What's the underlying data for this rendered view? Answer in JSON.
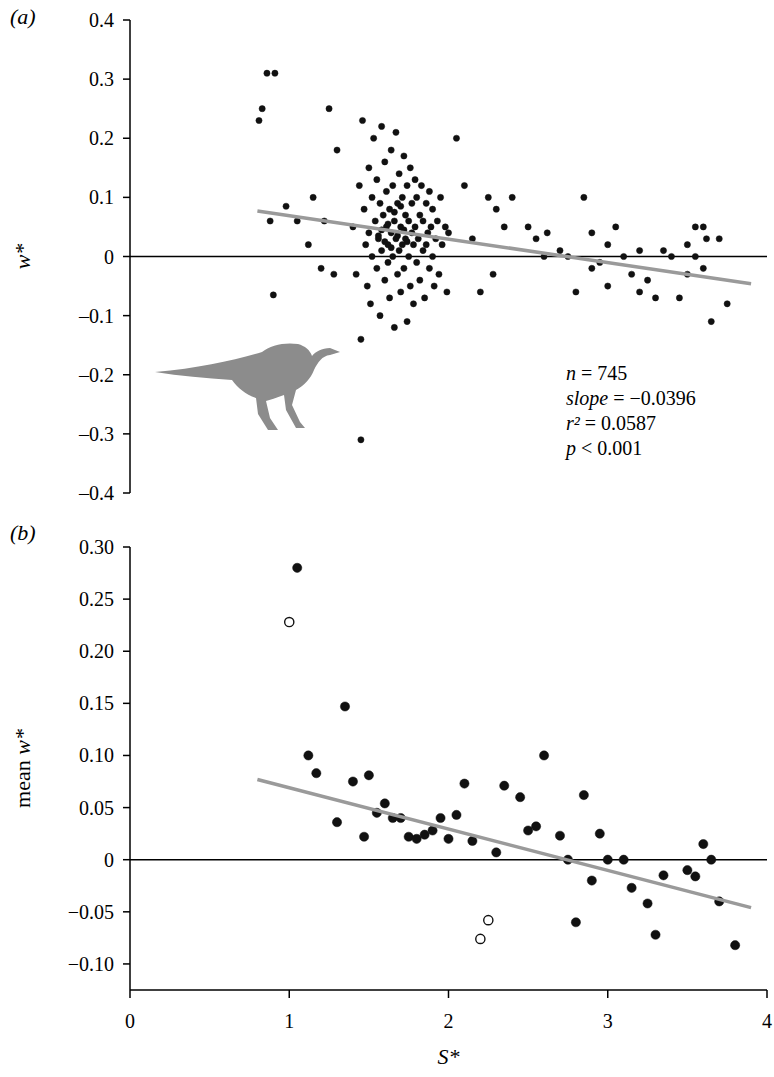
{
  "chart_data": [
    {
      "type": "scatter",
      "label": "(a)",
      "y_label": "w*",
      "xlim": [
        0,
        4
      ],
      "ylim": [
        -0.4,
        0.4
      ],
      "yticks": [
        0.4,
        0.3,
        0.2,
        0.1,
        0,
        {
          "value": -0.1,
          "label": "–0.1"
        },
        {
          "value": -0.2,
          "label": "–0.2"
        },
        {
          "value": -0.3,
          "label": "–0.3"
        },
        {
          "value": -0.4,
          "label": "–0.4"
        }
      ],
      "tick_labels": "y",
      "reference_line": 0,
      "annotations": [
        "n = 745",
        "slope = −0.0396",
        "r² = 0.0587",
        "p < 0.001"
      ],
      "series": [
        {
          "type": "scatter",
          "marker": "filled",
          "color": "#111111",
          "x": [
            0.81,
            0.83,
            0.86,
            0.91,
            0.88,
            0.9,
            0.98,
            1.05,
            1.12,
            1.15,
            1.2,
            1.25,
            1.22,
            1.3,
            1.28,
            1.45,
            1.4,
            1.42,
            1.44,
            1.45,
            1.46,
            1.47,
            1.48,
            1.49,
            1.5,
            1.5,
            1.51,
            1.52,
            1.52,
            1.53,
            1.54,
            1.55,
            1.55,
            1.56,
            1.57,
            1.57,
            1.58,
            1.58,
            1.59,
            1.6,
            1.6,
            1.61,
            1.61,
            1.62,
            1.62,
            1.63,
            1.63,
            1.64,
            1.64,
            1.65,
            1.65,
            1.66,
            1.66,
            1.67,
            1.67,
            1.68,
            1.68,
            1.69,
            1.69,
            1.7,
            1.7,
            1.71,
            1.71,
            1.72,
            1.72,
            1.73,
            1.73,
            1.74,
            1.74,
            1.75,
            1.75,
            1.76,
            1.76,
            1.77,
            1.77,
            1.78,
            1.78,
            1.79,
            1.79,
            1.8,
            1.8,
            1.81,
            1.82,
            1.82,
            1.83,
            1.84,
            1.84,
            1.85,
            1.86,
            1.86,
            1.87,
            1.88,
            1.88,
            1.89,
            1.9,
            1.9,
            1.91,
            1.92,
            1.93,
            1.94,
            1.95,
            1.96,
            1.98,
            1.99,
            2.0,
            1.56,
            1.58,
            1.6,
            1.62,
            1.64,
            1.66,
            1.68,
            1.7,
            1.72,
            1.74,
            2.05,
            2.1,
            2.15,
            2.2,
            2.25,
            2.3,
            2.28,
            2.35,
            2.4,
            2.5,
            2.55,
            2.6,
            2.62,
            2.7,
            2.8,
            2.85,
            2.9,
            2.9,
            3.0,
            3.0,
            3.05,
            3.1,
            3.15,
            3.2,
            3.25,
            3.3,
            3.35,
            3.45,
            3.5,
            3.5,
            3.55,
            3.6,
            3.6,
            3.65,
            3.7,
            3.75,
            3.55,
            3.62,
            3.4,
            3.2,
            2.95,
            2.75
          ],
          "values": [
            0.23,
            0.25,
            0.31,
            0.31,
            0.06,
            -0.065,
            0.085,
            0.06,
            0.02,
            0.1,
            -0.02,
            0.25,
            0.06,
            0.18,
            -0.03,
            -0.31,
            0.05,
            -0.03,
            0.12,
            -0.14,
            0.23,
            0.08,
            0.02,
            -0.05,
            0.15,
            0.04,
            -0.08,
            0.1,
            0.0,
            0.2,
            0.06,
            -0.02,
            0.13,
            0.03,
            0.09,
            -0.1,
            0.22,
            0.01,
            0.07,
            -0.04,
            0.16,
            0.05,
            0.11,
            -0.01,
            0.02,
            0.08,
            -0.07,
            0.18,
            0.04,
            0.0,
            0.12,
            -0.12,
            0.06,
            0.03,
            0.21,
            0.09,
            -0.03,
            0.14,
            0.01,
            0.05,
            -0.06,
            0.1,
            0.02,
            0.17,
            -0.02,
            0.07,
            0.03,
            -0.11,
            0.12,
            0.0,
            0.06,
            0.15,
            -0.05,
            0.04,
            0.09,
            0.02,
            -0.08,
            0.13,
            0.05,
            -0.01,
            0.1,
            0.03,
            0.07,
            -0.04,
            0.12,
            0.01,
            0.06,
            -0.07,
            0.09,
            0.02,
            0.04,
            -0.02,
            0.11,
            0.05,
            0.0,
            0.08,
            -0.05,
            0.03,
            0.06,
            -0.03,
            0.1,
            0.02,
            0.05,
            -0.06,
            0.04,
            0.035,
            0.045,
            0.025,
            0.055,
            0.015,
            0.075,
            0.035,
            0.085,
            0.045,
            0.025,
            0.2,
            0.12,
            0.03,
            -0.06,
            0.1,
            0.08,
            -0.03,
            0.05,
            0.1,
            0.05,
            0.03,
            0.0,
            0.04,
            0.01,
            -0.06,
            0.1,
            0.04,
            -0.02,
            0.02,
            -0.05,
            0.05,
            0.0,
            -0.03,
            0.01,
            -0.04,
            -0.07,
            0.01,
            -0.07,
            0.02,
            -0.03,
            0.05,
            0.05,
            -0.02,
            -0.11,
            0.03,
            -0.08,
            0.0,
            0.03,
            0.0,
            -0.06,
            -0.01,
            0.0
          ]
        },
        {
          "type": "line",
          "color": "#9a9a9a",
          "x": [
            0.8,
            3.9
          ],
          "values": [
            0.077,
            -0.046
          ]
        }
      ]
    },
    {
      "type": "scatter",
      "label": "(b)",
      "y_label": "mean w*",
      "x_label": "S*",
      "xlim": [
        0,
        4
      ],
      "ylim": [
        -0.125,
        0.3
      ],
      "xticks": [
        0,
        1,
        2,
        3,
        4
      ],
      "yticks": [
        {
          "value": 0.3,
          "label": "0.30"
        },
        0.25,
        {
          "value": 0.2,
          "label": "0.20"
        },
        0.15,
        {
          "value": 0.1,
          "label": "0.10"
        },
        0.05,
        0,
        {
          "value": -0.05,
          "label": "−0.05"
        },
        {
          "value": -0.1,
          "label": "−0.10"
        }
      ],
      "reference_line": 0,
      "series": [
        {
          "type": "scatter",
          "marker": "filled",
          "color": "#111111",
          "x": [
            1.05,
            1.12,
            1.17,
            1.3,
            1.35,
            1.4,
            1.47,
            1.5,
            1.55,
            1.6,
            1.65,
            1.7,
            1.75,
            1.8,
            1.85,
            1.9,
            1.95,
            2.0,
            2.05,
            2.1,
            2.15,
            2.3,
            2.35,
            2.45,
            2.5,
            2.55,
            2.6,
            2.7,
            2.75,
            2.8,
            2.85,
            2.9,
            2.95,
            3.0,
            3.1,
            3.15,
            3.25,
            3.3,
            3.35,
            3.5,
            3.55,
            3.6,
            3.65,
            3.7,
            3.8
          ],
          "values": [
            0.28,
            0.1,
            0.083,
            0.036,
            0.147,
            0.075,
            0.022,
            0.081,
            0.045,
            0.054,
            0.04,
            0.04,
            0.022,
            0.02,
            0.024,
            0.028,
            0.04,
            0.02,
            0.043,
            0.073,
            0.018,
            0.007,
            0.071,
            0.06,
            0.028,
            0.032,
            0.1,
            0.023,
            0,
            -0.06,
            0.062,
            -0.02,
            0.025,
            0,
            0,
            -0.027,
            -0.042,
            -0.072,
            -0.015,
            -0.01,
            -0.016,
            0.015,
            0,
            -0.04,
            -0.082
          ]
        },
        {
          "type": "scatter",
          "marker": "open",
          "color": "#111111",
          "x": [
            1.0,
            2.2,
            2.25
          ],
          "values": [
            0.228,
            -0.076,
            -0.058
          ]
        },
        {
          "type": "line",
          "color": "#9a9a9a",
          "x": [
            0.8,
            3.9
          ],
          "values": [
            0.077,
            -0.046
          ]
        }
      ]
    }
  ]
}
